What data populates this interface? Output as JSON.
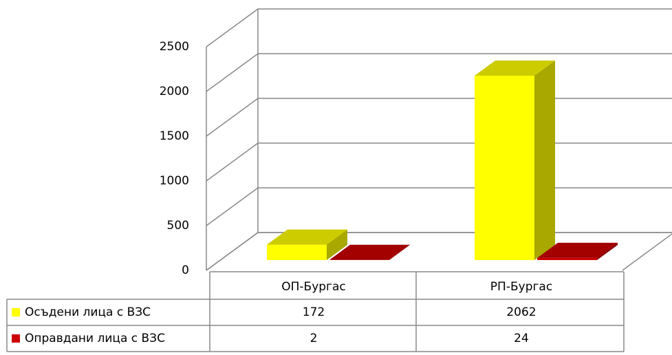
{
  "chart_data": {
    "type": "bar3d",
    "categories": [
      "ОП-Бургас",
      "РП-Бургас"
    ],
    "series": [
      {
        "name": "Осъдени лица с ВЗС",
        "color": "#ffff00",
        "values": [
          172,
          2062
        ]
      },
      {
        "name": "Оправдани лица с ВЗС",
        "color": "#cc0000",
        "values": [
          2,
          24
        ]
      }
    ],
    "ylim": [
      0,
      2500
    ],
    "yticks": [
      0,
      500,
      1000,
      1500,
      2000,
      2500
    ],
    "grid": true
  }
}
